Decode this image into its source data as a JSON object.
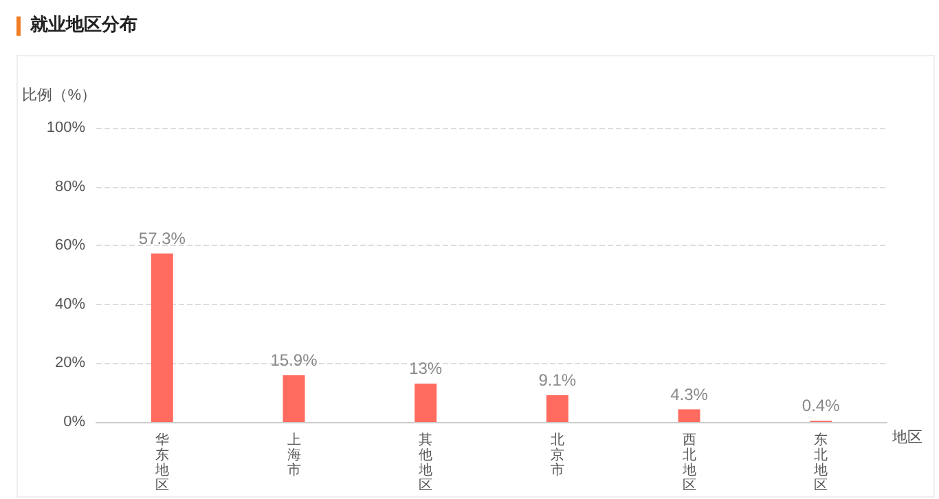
{
  "chart_data": {
    "type": "bar",
    "title": "就业地区分布",
    "ylabel": "比例（%）",
    "xlabel": "地区",
    "categories": [
      "华东地区",
      "上海市",
      "其他地区",
      "北京市",
      "西北地区",
      "东北地区"
    ],
    "values": [
      57.3,
      15.9,
      13,
      9.1,
      4.3,
      0.4
    ],
    "color": "#ff6b5e",
    "value_labels": [
      "57.3%",
      "15.9%",
      "13%",
      "9.1%",
      "4.3%",
      "0.4%"
    ],
    "ylim": [
      0,
      100
    ],
    "yticks": [
      {
        "value": 0,
        "label": "0%"
      },
      {
        "value": 20,
        "label": "20%"
      },
      {
        "value": 40,
        "label": "40%"
      },
      {
        "value": 60,
        "label": "60%"
      },
      {
        "value": 80,
        "label": "80%"
      },
      {
        "value": 100,
        "label": "100%"
      }
    ],
    "grid": "y"
  }
}
